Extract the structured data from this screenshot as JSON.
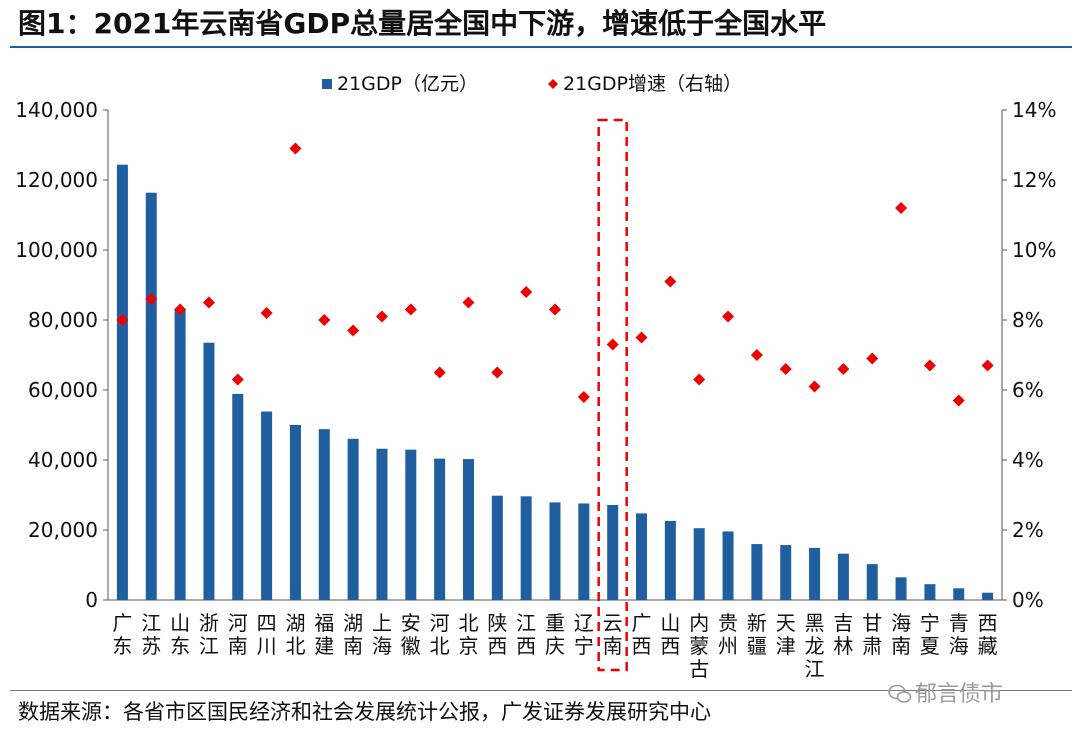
{
  "title": "图1：2021年云南省GDP总量居全国中下游，增速低于全国水平",
  "source": "数据来源：各省市区国民经济和社会发展统计公报，广发证券发展研究中心",
  "watermark": "郁言债市",
  "colors": {
    "bar": "#1f5fa0",
    "marker": "#ee0000",
    "highlight": "#ee0000",
    "rule": "#1f5fa0"
  },
  "chart_data": {
    "type": "bar",
    "highlight_category": "云南",
    "categories": [
      "广东",
      "江苏",
      "山东",
      "浙江",
      "河南",
      "四川",
      "湖北",
      "福建",
      "湖南",
      "上海",
      "安徽",
      "河北",
      "北京",
      "陕西",
      "江西",
      "重庆",
      "辽宁",
      "云南",
      "广西",
      "山西",
      "内蒙古",
      "贵州",
      "新疆",
      "天津",
      "黑龙江",
      "吉林",
      "甘肃",
      "海南",
      "宁夏",
      "青海",
      "西藏"
    ],
    "series": [
      {
        "name": "21GDP（亿元）",
        "type": "bar",
        "axis": "left",
        "values": [
          124370,
          116365,
          83096,
          73516,
          58887,
          53851,
          50013,
          48810,
          46063,
          43215,
          42959,
          40391,
          40270,
          29801,
          29620,
          27894,
          27584,
          27147,
          24741,
          22591,
          20514,
          19586,
          15984,
          15695,
          14879,
          13236,
          10243,
          6475,
          4522,
          3347,
          2080
        ]
      },
      {
        "name": "21GDP增速（右轴）",
        "type": "scatter",
        "axis": "right",
        "values": [
          8.0,
          8.6,
          8.3,
          8.5,
          6.3,
          8.2,
          12.9,
          8.0,
          7.7,
          8.1,
          8.3,
          6.5,
          8.5,
          6.5,
          8.8,
          8.3,
          5.8,
          7.3,
          7.5,
          9.1,
          6.3,
          8.1,
          7.0,
          6.6,
          6.1,
          6.6,
          6.9,
          11.2,
          6.7,
          5.7,
          6.7
        ]
      }
    ],
    "y_left": {
      "min": 0,
      "max": 140000,
      "ticks": [
        "0",
        "20,000",
        "40,000",
        "60,000",
        "80,000",
        "100,000",
        "120,000",
        "140,000"
      ]
    },
    "y_right": {
      "min": 0,
      "max": 14,
      "ticks": [
        "0%",
        "2%",
        "4%",
        "6%",
        "8%",
        "10%",
        "12%",
        "14%"
      ]
    },
    "legend_position": "top-center"
  }
}
